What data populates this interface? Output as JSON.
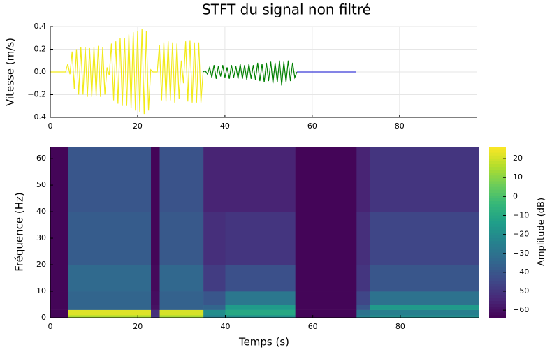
{
  "chart_data": [
    {
      "type": "line",
      "title": "STFT du signal non filtré",
      "ylabel": "Vitesse (m/s)",
      "xlim": [
        0,
        97.8
      ],
      "xticks": [
        0,
        20,
        40,
        60,
        80
      ],
      "ylim": [
        -0.4,
        0.4
      ],
      "yticks": [
        {
          "value": -0.4,
          "label": "−0.4"
        },
        {
          "value": -0.2,
          "label": "−0.2"
        },
        {
          "value": 0,
          "label": "0.0"
        },
        0.2,
        0.4
      ],
      "grid": true,
      "series": [
        {
          "color": "#f2ea1a",
          "x": [
            0,
            3.5,
            4,
            4.5,
            5,
            5.5,
            6,
            6.5,
            7,
            7.5,
            8,
            8.5,
            9,
            9.5,
            10,
            10.5,
            11,
            11.5,
            12,
            12.5,
            13,
            13.5,
            14,
            14.5,
            15,
            15.5,
            16,
            16.5,
            17,
            17.5,
            18,
            18.5,
            19,
            19.5,
            20,
            20.5,
            21,
            21.5,
            22,
            22.5,
            23,
            23.5,
            24,
            24.5,
            25,
            25.5,
            26,
            26.5,
            27,
            27.5,
            28,
            28.5,
            29,
            29.5,
            30,
            30.5,
            31,
            31.5,
            32,
            32.5,
            33,
            33.5,
            34,
            34.5,
            35
          ],
          "values": [
            0,
            0,
            0.07,
            -0.02,
            0.18,
            -0.15,
            0.2,
            -0.2,
            0.22,
            -0.2,
            0.22,
            -0.22,
            0.21,
            -0.22,
            0.22,
            -0.21,
            0.23,
            -0.22,
            0.22,
            -0.2,
            0.04,
            -0.03,
            0.25,
            -0.25,
            0.27,
            -0.28,
            0.3,
            -0.3,
            0.3,
            -0.3,
            0.33,
            -0.32,
            0.35,
            -0.34,
            0.36,
            -0.35,
            0.38,
            -0.37,
            0.36,
            -0.34,
            0.02,
            0,
            0,
            0,
            0.24,
            -0.25,
            0.26,
            -0.26,
            0.27,
            -0.25,
            0.26,
            -0.27,
            0.25,
            -0.24,
            0.1,
            -0.1,
            0.27,
            -0.26,
            0.28,
            -0.27,
            0.26,
            -0.27,
            0.26,
            -0.27,
            0
          ]
        },
        {
          "color": "#008000",
          "x": [
            35,
            35.5,
            36,
            36.5,
            37,
            37.5,
            38,
            38.5,
            39,
            39.5,
            40,
            40.5,
            41,
            41.5,
            42,
            42.5,
            43,
            43.5,
            44,
            44.5,
            45,
            45.5,
            46,
            46.5,
            47,
            47.5,
            48,
            48.5,
            49,
            49.5,
            50,
            50.5,
            51,
            51.5,
            52,
            52.5,
            53,
            53.5,
            54,
            54.5,
            55,
            55.5,
            56,
            56.5
          ],
          "values": [
            0,
            0.01,
            -0.02,
            0.04,
            -0.05,
            0.06,
            -0.06,
            0.05,
            -0.04,
            0.06,
            -0.05,
            0.04,
            -0.06,
            0.06,
            -0.05,
            0.05,
            -0.06,
            0.07,
            -0.06,
            0.06,
            -0.07,
            0.07,
            -0.06,
            0.06,
            -0.07,
            0.08,
            -0.08,
            0.07,
            -0.09,
            0.08,
            -0.08,
            0.09,
            -0.1,
            0.08,
            -0.09,
            0.1,
            -0.12,
            0.09,
            -0.09,
            0.1,
            -0.08,
            0.08,
            -0.05,
            0
          ]
        },
        {
          "color": "#3a3ad6",
          "x": [
            56.5,
            70
          ],
          "values": [
            0,
            0
          ]
        }
      ]
    },
    {
      "type": "heatmap",
      "xlabel": "Temps (s)",
      "ylabel": "Fréquence (Hz)",
      "xlim": [
        0,
        97.9
      ],
      "xticks": [
        0,
        20,
        40,
        60,
        80
      ],
      "ylim": [
        0,
        64.5
      ],
      "yticks": [
        0,
        10,
        20,
        30,
        40,
        50,
        60
      ],
      "colormap": "viridis",
      "colorbar_label": "Amplitude (dB)",
      "clim": [
        -64,
        26.3
      ],
      "cticks": [
        {
          "value": -60,
          "label": "−60"
        },
        {
          "value": -50,
          "label": "−50"
        },
        {
          "value": -40,
          "label": "−40"
        },
        {
          "value": -30,
          "label": "−30"
        },
        {
          "value": -20,
          "label": "−20"
        },
        {
          "value": -10,
          "label": "−10"
        },
        0,
        10,
        20
      ],
      "x_edges": [
        0,
        4,
        23,
        25,
        35,
        40,
        56,
        70,
        73,
        97.9
      ],
      "y_edges": [
        0,
        1,
        3,
        5,
        10,
        20,
        40,
        64.5
      ],
      "z": [
        [
          -63,
          15,
          -50,
          14,
          -25,
          -20,
          -63,
          -25,
          -20
        ],
        [
          -63,
          22,
          -52,
          21,
          -20,
          -10,
          -63,
          -30,
          -25
        ],
        [
          -63,
          -35,
          -60,
          -36,
          -35,
          -15,
          -63,
          -40,
          -15
        ],
        [
          -63,
          -35,
          -61,
          -36,
          -40,
          -28,
          -63,
          -45,
          -30
        ],
        [
          -63,
          -33,
          -62,
          -34,
          -48,
          -42,
          -63,
          -50,
          -40
        ],
        [
          -63,
          -38,
          -63,
          -39,
          -52,
          -50,
          -63,
          -52,
          -45
        ],
        [
          -63,
          -40,
          -63,
          -41,
          -55,
          -55,
          -63,
          -55,
          -50
        ]
      ]
    }
  ]
}
